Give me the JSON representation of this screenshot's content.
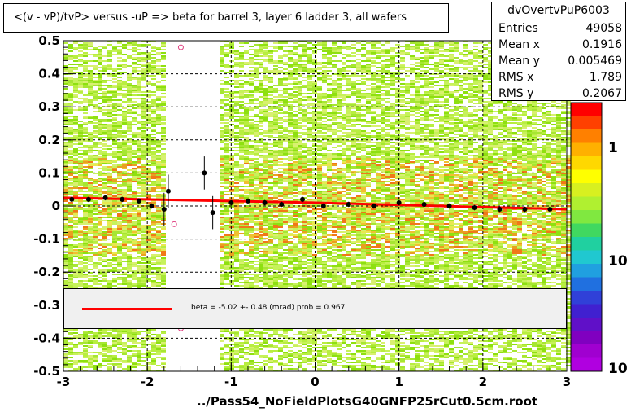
{
  "title": "<(v - vP)/tvP> versus  -uP => beta for barrel 3, layer 6 ladder 3, all wafers",
  "stats": {
    "name": "dvOvertvPuP6003",
    "rows": [
      {
        "label": "Entries",
        "value": "49058"
      },
      {
        "label": "Mean x",
        "value": "0.1916"
      },
      {
        "label": "Mean y",
        "value": "0.005469"
      },
      {
        "label": "RMS x",
        "value": "1.789"
      },
      {
        "label": "RMS y",
        "value": "0.2067"
      }
    ]
  },
  "fit": {
    "text": "beta =   -5.02 +-  0.48 (mrad) prob = 0.967",
    "line_color": "#ff0000"
  },
  "chart_data": {
    "type": "scatter",
    "xlabel": "../Pass54_NoFieldPlotsG40GNFP25rCut0.5cm.root",
    "ylabel": "",
    "xlim": [
      -3,
      3
    ],
    "ylim": [
      -0.5,
      0.5
    ],
    "x_ticks": [
      "-3",
      "-2",
      "-1",
      "0",
      "1",
      "2",
      "3"
    ],
    "y_ticks": [
      "-0.5",
      "-0.4",
      "-0.3",
      "-0.2",
      "-0.1",
      "0",
      "0.1",
      "0.2",
      "0.3",
      "0.4",
      "0.5"
    ],
    "grid": true,
    "z_scale_labels": [
      "1",
      "10",
      "10"
    ],
    "profile_points": [
      {
        "x": -2.9,
        "y": 0.02
      },
      {
        "x": -2.7,
        "y": 0.02
      },
      {
        "x": -2.5,
        "y": 0.025
      },
      {
        "x": -2.3,
        "y": 0.02
      },
      {
        "x": -2.1,
        "y": 0.015
      },
      {
        "x": -1.95,
        "y": 0.0
      },
      {
        "x": -1.8,
        "y": -0.01
      },
      {
        "x": -1.75,
        "y": 0.045
      },
      {
        "x": -1.32,
        "y": 0.1
      },
      {
        "x": -1.22,
        "y": -0.02
      },
      {
        "x": -1.0,
        "y": 0.01
      },
      {
        "x": -0.8,
        "y": 0.015
      },
      {
        "x": -0.6,
        "y": 0.01
      },
      {
        "x": -0.4,
        "y": 0.005
      },
      {
        "x": -0.15,
        "y": 0.02
      },
      {
        "x": 0.1,
        "y": 0.0
      },
      {
        "x": 0.4,
        "y": 0.005
      },
      {
        "x": 0.7,
        "y": 0.0
      },
      {
        "x": 1.0,
        "y": 0.01
      },
      {
        "x": 1.3,
        "y": 0.005
      },
      {
        "x": 1.6,
        "y": 0.0
      },
      {
        "x": 1.9,
        "y": -0.005
      },
      {
        "x": 2.2,
        "y": -0.01
      },
      {
        "x": 2.5,
        "y": -0.01
      },
      {
        "x": 2.8,
        "y": -0.01
      }
    ],
    "open_markers": [
      {
        "x": -1.6,
        "y": 0.48
      },
      {
        "x": -1.68,
        "y": -0.055
      },
      {
        "x": -1.6,
        "y": -0.37
      }
    ],
    "fit_line": [
      {
        "x": -3,
        "y": 0.025
      },
      {
        "x": -1.2,
        "y": 0.016
      },
      {
        "x": 0.0,
        "y": 0.01
      },
      {
        "x": 3,
        "y": -0.01
      }
    ]
  }
}
